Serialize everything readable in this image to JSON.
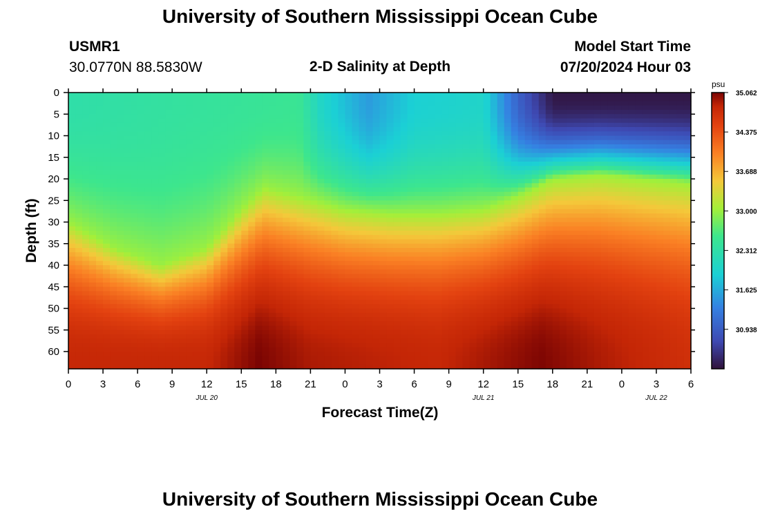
{
  "header": {
    "title": "University of Southern Mississippi Ocean Cube",
    "station": "USMR1",
    "coords": "30.0770N  88.5830W",
    "subtitle": "2-D Salinity at Depth",
    "model_start_label": "Model Start Time",
    "model_start_value": "07/20/2024 Hour 03"
  },
  "footer": {
    "title": "University of Southern Mississippi Ocean Cube"
  },
  "chart_data": {
    "type": "heatmap",
    "title": "2-D Salinity at Depth",
    "xlabel": "Forecast Time(Z)",
    "ylabel": "Depth (ft)",
    "xlim": [
      0,
      54
    ],
    "ylim": [
      64,
      0
    ],
    "x_ticks": [
      {
        "h": 0,
        "label": "0"
      },
      {
        "h": 3,
        "label": "3"
      },
      {
        "h": 6,
        "label": "6"
      },
      {
        "h": 9,
        "label": "9"
      },
      {
        "h": 12,
        "label": "12"
      },
      {
        "h": 15,
        "label": "15"
      },
      {
        "h": 18,
        "label": "18"
      },
      {
        "h": 21,
        "label": "21"
      },
      {
        "h": 24,
        "label": "0"
      },
      {
        "h": 27,
        "label": "3"
      },
      {
        "h": 30,
        "label": "6"
      },
      {
        "h": 33,
        "label": "9"
      },
      {
        "h": 36,
        "label": "12"
      },
      {
        "h": 39,
        "label": "15"
      },
      {
        "h": 42,
        "label": "18"
      },
      {
        "h": 45,
        "label": "21"
      },
      {
        "h": 48,
        "label": "0"
      },
      {
        "h": 51,
        "label": "3"
      },
      {
        "h": 54,
        "label": "6"
      }
    ],
    "date_labels": [
      {
        "h": 12,
        "label": "JUL 20"
      },
      {
        "h": 36,
        "label": "JUL 21"
      },
      {
        "h": 51,
        "label": "JUL 22"
      }
    ],
    "y_ticks": [
      0,
      5,
      10,
      15,
      20,
      25,
      30,
      35,
      40,
      45,
      50,
      55,
      60
    ],
    "colorbar": {
      "unit": "psu",
      "min": 30.25,
      "max": 35.062,
      "tick_values": [
        35.062,
        34.375,
        33.688,
        33.0,
        32.312,
        31.625,
        30.938
      ],
      "tick_labels": [
        "35.062",
        "34.375",
        "33.688",
        "33.000",
        "32.312",
        "31.625",
        "30.938"
      ]
    },
    "isohaline_33_depth_ft": [
      {
        "h": 0,
        "d": 30
      },
      {
        "h": 4,
        "d": 36
      },
      {
        "h": 8,
        "d": 40
      },
      {
        "h": 12,
        "d": 36
      },
      {
        "h": 15,
        "d": 27
      },
      {
        "h": 17,
        "d": 22
      },
      {
        "h": 20,
        "d": 24
      },
      {
        "h": 24,
        "d": 27
      },
      {
        "h": 28,
        "d": 28
      },
      {
        "h": 32,
        "d": 28
      },
      {
        "h": 36,
        "d": 27
      },
      {
        "h": 39,
        "d": 24
      },
      {
        "h": 42,
        "d": 20
      },
      {
        "h": 46,
        "d": 19
      },
      {
        "h": 50,
        "d": 20
      },
      {
        "h": 54,
        "d": 21
      }
    ],
    "surface_min_psu": [
      {
        "h": 0,
        "v": 32.3
      },
      {
        "h": 20,
        "v": 32.5
      },
      {
        "h": 22,
        "v": 32.0
      },
      {
        "h": 26,
        "v": 31.5
      },
      {
        "h": 30,
        "v": 31.9
      },
      {
        "h": 36,
        "v": 32.0
      },
      {
        "h": 39,
        "v": 31.0
      },
      {
        "h": 42,
        "v": 30.3
      },
      {
        "h": 54,
        "v": 30.3
      }
    ],
    "bottom_max_psu": [
      {
        "h": 0,
        "v": 34.8
      },
      {
        "h": 12,
        "v": 34.8
      },
      {
        "h": 16.5,
        "v": 35.06
      },
      {
        "h": 21,
        "v": 34.9
      },
      {
        "h": 32,
        "v": 34.8
      },
      {
        "h": 41,
        "v": 35.05
      },
      {
        "h": 46,
        "v": 34.9
      },
      {
        "h": 54,
        "v": 34.7
      }
    ]
  }
}
